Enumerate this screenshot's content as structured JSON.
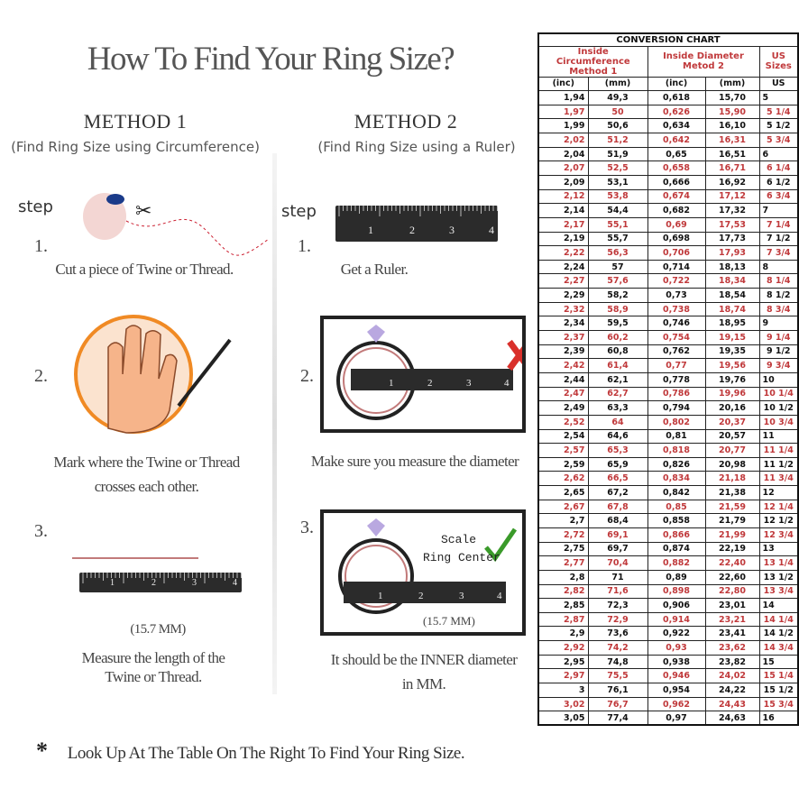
{
  "title": "How To Find Your Ring Size?",
  "method1": {
    "heading": "METHOD 1",
    "subtitle": "(Find Ring Size using Circumference)",
    "step_label": "step",
    "steps": [
      {
        "num": "1.",
        "caption": [
          "Cut a piece of Twine or Thread."
        ]
      },
      {
        "num": "2.",
        "caption": [
          "Mark where the Twine or Thread",
          "crosses each other."
        ]
      },
      {
        "num": "3.",
        "caption": [
          "(15.7 MM)",
          "Measure the length of the",
          "Twine or Thread."
        ]
      }
    ]
  },
  "method2": {
    "heading": "METHOD 2",
    "subtitle": "(Find Ring Size using a Ruler)",
    "step_label": "step",
    "steps": [
      {
        "num": "1.",
        "caption": [
          "Get a Ruler."
        ]
      },
      {
        "num": "2.",
        "caption": [
          "Make sure you measure the diameter"
        ]
      },
      {
        "num": "3.",
        "caption": [
          "It should be the INNER diameter",
          "in MM."
        ],
        "scale_label": "Scale",
        "ring_center_label": "Ring Center",
        "measure": "(15.7 MM)"
      }
    ]
  },
  "ruler_labels": [
    "1",
    "2",
    "3",
    "4"
  ],
  "footnote": {
    "symbol": "*",
    "text": "Look Up At The Table On The Right To Find Your Ring Size."
  },
  "colors": {
    "accent_red": "#c0393b",
    "ruler": "#2b2b2b",
    "check": "#3a9a2a",
    "cross": "#d9302b",
    "circle": "#f08a24"
  },
  "table": {
    "title": "CONVERSION CHART",
    "group_headers": [
      "Inside Circumference",
      "Method 1",
      "Inside Diameter",
      "Metod 2",
      "US Sizes"
    ],
    "columns": [
      "(inc)",
      "(mm)",
      "(inc)",
      "(mm)",
      "US"
    ],
    "rows": [
      [
        "1,94",
        "49,3",
        "0,618",
        "15,70",
        "5"
      ],
      [
        "1,97",
        "50",
        "0,626",
        "15,90",
        "5 1/4"
      ],
      [
        "1,99",
        "50,6",
        "0,634",
        "16,10",
        "5 1/2"
      ],
      [
        "2,02",
        "51,2",
        "0,642",
        "16,31",
        "5 3/4"
      ],
      [
        "2,04",
        "51,9",
        "0,65",
        "16,51",
        "6"
      ],
      [
        "2,07",
        "52,5",
        "0,658",
        "16,71",
        "6 1/4"
      ],
      [
        "2,09",
        "53,1",
        "0,666",
        "16,92",
        "6 1/2"
      ],
      [
        "2,12",
        "53,8",
        "0,674",
        "17,12",
        "6 3/4"
      ],
      [
        "2,14",
        "54,4",
        "0,682",
        "17,32",
        "7"
      ],
      [
        "2,17",
        "55,1",
        "0,69",
        "17,53",
        "7 1/4"
      ],
      [
        "2,19",
        "55,7",
        "0,698",
        "17,73",
        "7 1/2"
      ],
      [
        "2,22",
        "56,3",
        "0,706",
        "17,93",
        "7 3/4"
      ],
      [
        "2,24",
        "57",
        "0,714",
        "18,13",
        "8"
      ],
      [
        "2,27",
        "57,6",
        "0,722",
        "18,34",
        "8 1/4"
      ],
      [
        "2,29",
        "58,2",
        "0,73",
        "18,54",
        "8 1/2"
      ],
      [
        "2,32",
        "58,9",
        "0,738",
        "18,74",
        "8 3/4"
      ],
      [
        "2,34",
        "59,5",
        "0,746",
        "18,95",
        "9"
      ],
      [
        "2,37",
        "60,2",
        "0,754",
        "19,15",
        "9 1/4"
      ],
      [
        "2,39",
        "60,8",
        "0,762",
        "19,35",
        "9 1/2"
      ],
      [
        "2,42",
        "61,4",
        "0,77",
        "19,56",
        "9 3/4"
      ],
      [
        "2,44",
        "62,1",
        "0,778",
        "19,76",
        "10"
      ],
      [
        "2,47",
        "62,7",
        "0,786",
        "19,96",
        "10 1/4"
      ],
      [
        "2,49",
        "63,3",
        "0,794",
        "20,16",
        "10 1/2"
      ],
      [
        "2,52",
        "64",
        "0,802",
        "20,37",
        "10 3/4"
      ],
      [
        "2,54",
        "64,6",
        "0,81",
        "20,57",
        "11"
      ],
      [
        "2,57",
        "65,3",
        "0,818",
        "20,77",
        "11 1/4"
      ],
      [
        "2,59",
        "65,9",
        "0,826",
        "20,98",
        "11 1/2"
      ],
      [
        "2,62",
        "66,5",
        "0,834",
        "21,18",
        "11 3/4"
      ],
      [
        "2,65",
        "67,2",
        "0,842",
        "21,38",
        "12"
      ],
      [
        "2,67",
        "67,8",
        "0,85",
        "21,59",
        "12 1/4"
      ],
      [
        "2,7",
        "68,4",
        "0,858",
        "21,79",
        "12 1/2"
      ],
      [
        "2,72",
        "69,1",
        "0,866",
        "21,99",
        "12 3/4"
      ],
      [
        "2,75",
        "69,7",
        "0,874",
        "22,19",
        "13"
      ],
      [
        "2,77",
        "70,4",
        "0,882",
        "22,40",
        "13 1/4"
      ],
      [
        "2,8",
        "71",
        "0,89",
        "22,60",
        "13 1/2"
      ],
      [
        "2,82",
        "71,6",
        "0,898",
        "22,80",
        "13 3/4"
      ],
      [
        "2,85",
        "72,3",
        "0,906",
        "23,01",
        "14"
      ],
      [
        "2,87",
        "72,9",
        "0,914",
        "23,21",
        "14 1/4"
      ],
      [
        "2,9",
        "73,6",
        "0,922",
        "23,41",
        "14 1/2"
      ],
      [
        "2,92",
        "74,2",
        "0,93",
        "23,62",
        "14 3/4"
      ],
      [
        "2,95",
        "74,8",
        "0,938",
        "23,82",
        "15"
      ],
      [
        "2,97",
        "75,5",
        "0,946",
        "24,02",
        "15 1/4"
      ],
      [
        "3",
        "76,1",
        "0,954",
        "24,22",
        "15 1/2"
      ],
      [
        "3,02",
        "76,7",
        "0,962",
        "24,43",
        "15 3/4"
      ],
      [
        "3,05",
        "77,4",
        "0,97",
        "24,63",
        "16"
      ]
    ]
  }
}
